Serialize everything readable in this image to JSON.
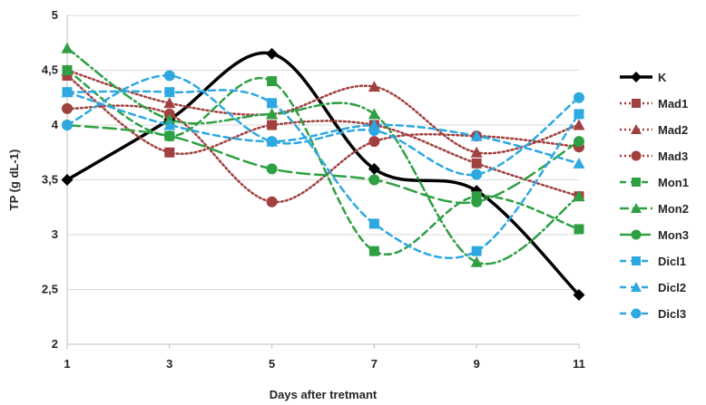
{
  "chart_data": {
    "type": "line",
    "title": "",
    "xlabel": "Days after tretmant",
    "ylabel": "TP (g dL-1)",
    "x": [
      1,
      3,
      5,
      7,
      9,
      11
    ],
    "xticks": [
      "1",
      "3",
      "5",
      "7",
      "9",
      "11"
    ],
    "yticks": [
      "2",
      "2,5",
      "3",
      "3,5",
      "4",
      "4,5",
      "5"
    ],
    "ylim": [
      2,
      5
    ],
    "xlim": [
      1,
      11
    ],
    "grid": "horizontal",
    "legend": "right",
    "series": [
      {
        "name": "K",
        "values": [
          3.5,
          4.05,
          4.65,
          3.6,
          3.4,
          2.45
        ],
        "color": "#000000",
        "dash": "solid",
        "marker": "diamond"
      },
      {
        "name": "Mad1",
        "values": [
          4.45,
          3.75,
          4.0,
          4.0,
          3.65,
          3.35
        ],
        "color": "#a0403f",
        "dash": "dot",
        "marker": "square"
      },
      {
        "name": "Mad2",
        "values": [
          4.5,
          4.2,
          4.1,
          4.35,
          3.75,
          4.0
        ],
        "color": "#a0403f",
        "dash": "dot",
        "marker": "triangle"
      },
      {
        "name": "Mad3",
        "values": [
          4.15,
          4.1,
          3.3,
          3.85,
          3.9,
          3.8
        ],
        "color": "#a0403f",
        "dash": "dot",
        "marker": "circle"
      },
      {
        "name": "Mon1",
        "values": [
          4.5,
          3.9,
          4.4,
          2.85,
          3.35,
          3.05
        ],
        "color": "#2ea043",
        "dash": "dash",
        "marker": "square"
      },
      {
        "name": "Mon2",
        "values": [
          4.7,
          4.05,
          4.1,
          4.1,
          2.75,
          3.35
        ],
        "color": "#2ea043",
        "dash": "dashdot",
        "marker": "triangle"
      },
      {
        "name": "Mon3",
        "values": [
          4.0,
          3.9,
          3.6,
          3.5,
          3.3,
          3.85
        ],
        "color": "#2ea043",
        "dash": "longdash",
        "marker": "circle"
      },
      {
        "name": "Dicl1",
        "values": [
          4.3,
          4.3,
          4.2,
          3.1,
          2.85,
          4.1
        ],
        "color": "#2ea8e0",
        "dash": "dash",
        "marker": "square"
      },
      {
        "name": "Dicl2",
        "values": [
          4.3,
          4.0,
          3.85,
          4.0,
          3.9,
          3.65
        ],
        "color": "#2ea8e0",
        "dash": "dash",
        "marker": "triangle"
      },
      {
        "name": "Dicl3",
        "values": [
          4.0,
          4.45,
          3.85,
          3.95,
          3.55,
          4.25
        ],
        "color": "#2ea8e0",
        "dash": "dash",
        "marker": "circle"
      }
    ]
  }
}
